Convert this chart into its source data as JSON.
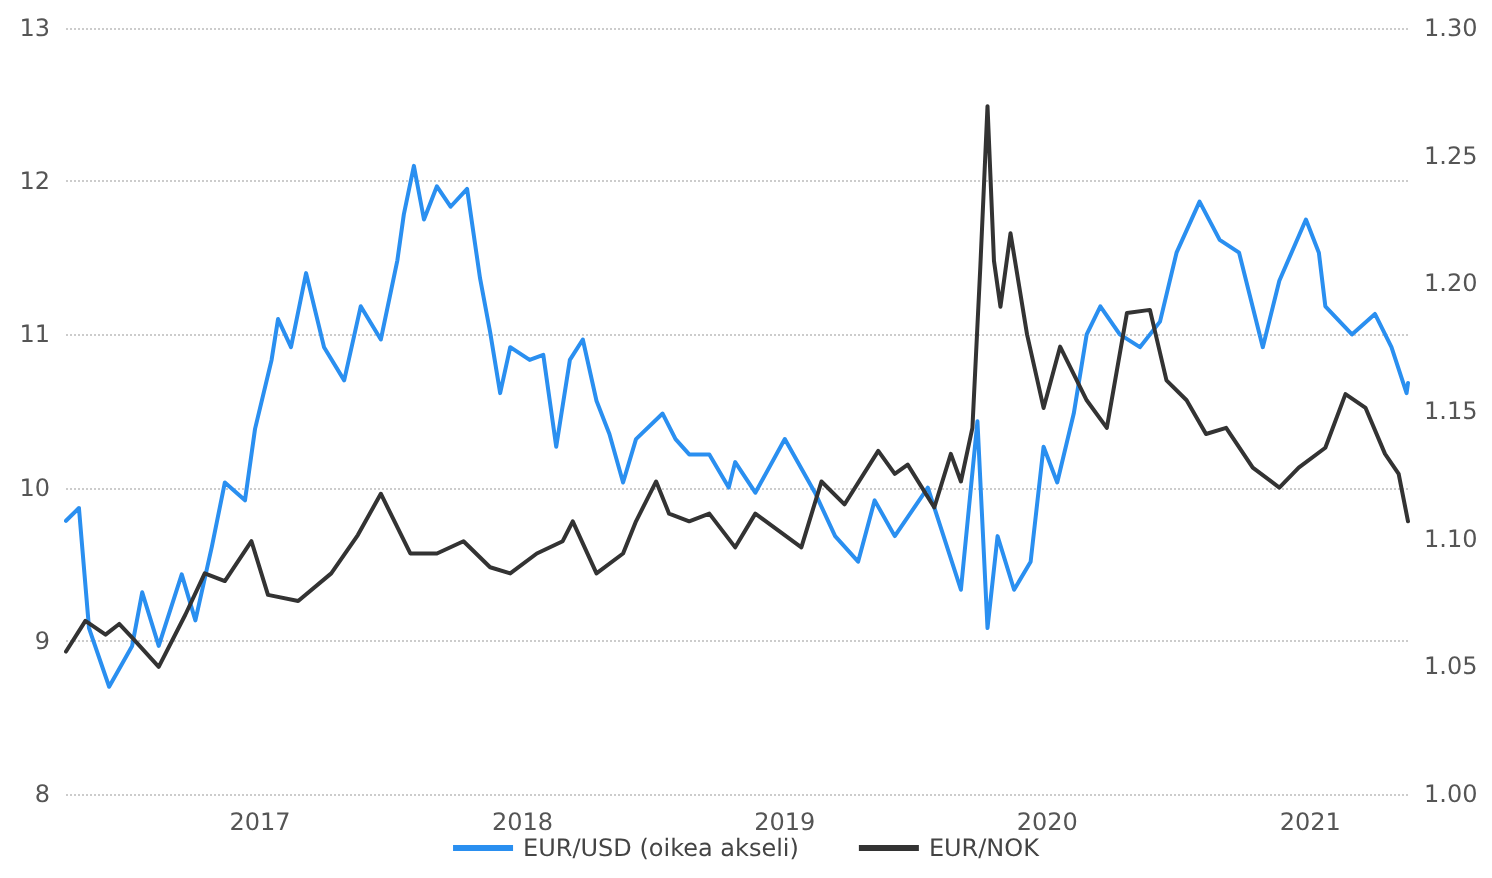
{
  "chart_data": {
    "type": "line",
    "xlim": [
      "2016-04-06",
      "2021-05-17"
    ],
    "xticks": [
      "2017",
      "2018",
      "2019",
      "2020",
      "2021"
    ],
    "ylim": [
      8,
      13
    ],
    "yticks": [
      8,
      9,
      10,
      11,
      12,
      13
    ],
    "y2lim": [
      1,
      1.3
    ],
    "y2ticks": [
      {
        "value": 1,
        "label": "1.00"
      },
      {
        "value": 1.05,
        "label": "1.05"
      },
      {
        "value": 1.1,
        "label": "1.10"
      },
      {
        "value": 1.15,
        "label": "1.15"
      },
      {
        "value": 1.2,
        "label": "1.20"
      },
      {
        "value": 1.25,
        "label": "1.25"
      },
      {
        "value": 1.3,
        "label": "1.30"
      }
    ],
    "grid": "y",
    "legend": "bottom",
    "marker": "none",
    "series": [
      {
        "name": "EUR/USD (oikea akseli)",
        "color": "#2a8ff0",
        "axis": "y2",
        "x": [
          "2016-04-06",
          "2016-04-24",
          "2016-05-08",
          "2016-06-05",
          "2016-07-07",
          "2016-07-21",
          "2016-08-13",
          "2016-09-14",
          "2016-10-03",
          "2016-10-26",
          "2016-11-13",
          "2016-12-11",
          "2016-12-25",
          "2017-01-17",
          "2017-01-26",
          "2017-02-13",
          "2017-03-06",
          "2017-03-31",
          "2017-04-28",
          "2017-05-21",
          "2017-06-18",
          "2017-07-11",
          "2017-07-20",
          "2017-08-03",
          "2017-08-17",
          "2017-09-04",
          "2017-09-23",
          "2017-10-16",
          "2017-11-03",
          "2017-11-17",
          "2017-12-01",
          "2017-12-15",
          "2018-01-11",
          "2018-01-30",
          "2018-02-17",
          "2018-03-08",
          "2018-03-26",
          "2018-04-14",
          "2018-05-02",
          "2018-05-21",
          "2018-06-08",
          "2018-07-15",
          "2018-08-02",
          "2018-08-21",
          "2018-09-18",
          "2018-10-15",
          "2018-10-24",
          "2018-11-21",
          "2019-01-01",
          "2019-02-12",
          "2019-03-12",
          "2019-04-13",
          "2019-05-06",
          "2019-06-03",
          "2019-07-19",
          "2019-09-03",
          "2019-09-26",
          "2019-10-10",
          "2019-10-24",
          "2019-11-16",
          "2019-12-09",
          "2019-12-27",
          "2020-01-15",
          "2020-02-07",
          "2020-02-25",
          "2020-03-15",
          "2020-04-11",
          "2020-05-09",
          "2020-06-06",
          "2020-06-29",
          "2020-07-31",
          "2020-08-28",
          "2020-09-24",
          "2020-10-27",
          "2020-11-19",
          "2020-12-26",
          "2021-01-13",
          "2021-01-22",
          "2021-02-28",
          "2021-04-01",
          "2021-04-24",
          "2021-05-15",
          "2021-05-17"
        ],
        "values": [
          1.107,
          1.112,
          1.065,
          1.042,
          1.058,
          1.079,
          1.058,
          1.086,
          1.068,
          1.097,
          1.122,
          1.115,
          1.143,
          1.17,
          1.186,
          1.175,
          1.204,
          1.175,
          1.162,
          1.191,
          1.178,
          1.209,
          1.227,
          1.246,
          1.225,
          1.238,
          1.23,
          1.237,
          1.202,
          1.181,
          1.157,
          1.175,
          1.17,
          1.172,
          1.136,
          1.17,
          1.178,
          1.154,
          1.141,
          1.122,
          1.139,
          1.149,
          1.139,
          1.133,
          1.133,
          1.12,
          1.13,
          1.118,
          1.139,
          1.118,
          1.101,
          1.091,
          1.115,
          1.101,
          1.12,
          1.08,
          1.146,
          1.065,
          1.101,
          1.08,
          1.091,
          1.136,
          1.122,
          1.149,
          1.18,
          1.191,
          1.18,
          1.175,
          1.185,
          1.212,
          1.232,
          1.217,
          1.212,
          1.175,
          1.201,
          1.225,
          1.212,
          1.191,
          1.18,
          1.188,
          1.175,
          1.157,
          1.161
        ]
      },
      {
        "name": "EUR/NOK",
        "color": "#333333",
        "x": [
          "2016-04-06",
          "2016-05-03",
          "2016-05-31",
          "2016-06-19",
          "2016-07-07",
          "2016-08-13",
          "2016-09-19",
          "2016-10-16",
          "2016-11-13",
          "2016-12-20",
          "2017-01-12",
          "2017-02-23",
          "2017-04-10",
          "2017-05-17",
          "2017-06-18",
          "2017-07-29",
          "2017-09-04",
          "2017-10-11",
          "2017-11-17",
          "2017-12-15",
          "2018-01-21",
          "2018-02-26",
          "2018-03-12",
          "2018-04-14",
          "2018-05-21",
          "2018-06-08",
          "2018-07-06",
          "2018-07-24",
          "2018-08-21",
          "2018-09-18",
          "2018-10-24",
          "2018-11-21",
          "2019-01-24",
          "2019-02-21",
          "2019-03-25",
          "2019-05-11",
          "2019-06-03",
          "2019-06-21",
          "2019-07-28",
          "2019-08-20",
          "2019-09-03",
          "2019-09-19",
          "2019-09-30",
          "2019-10-10",
          "2019-10-19",
          "2019-10-28",
          "2019-11-11",
          "2019-12-04",
          "2019-12-27",
          "2020-01-19",
          "2020-02-25",
          "2020-03-24",
          "2020-04-21",
          "2020-05-23",
          "2020-06-15",
          "2020-07-13",
          "2020-08-09",
          "2020-09-06",
          "2020-10-13",
          "2020-11-19",
          "2020-12-16",
          "2021-01-22",
          "2021-02-19",
          "2021-03-19",
          "2021-04-15",
          "2021-05-04",
          "2021-05-17"
        ],
        "values": [
          8.93,
          9.13,
          9.04,
          9.11,
          9.02,
          8.83,
          9.17,
          9.44,
          9.39,
          9.65,
          9.3,
          9.26,
          9.44,
          9.69,
          9.96,
          9.57,
          9.57,
          9.65,
          9.48,
          9.44,
          9.57,
          9.65,
          9.78,
          9.44,
          9.57,
          9.78,
          10.04,
          9.83,
          9.78,
          9.83,
          9.61,
          9.83,
          9.61,
          10.04,
          9.89,
          10.24,
          10.09,
          10.15,
          9.87,
          10.22,
          10.04,
          10.39,
          11.44,
          12.49,
          11.48,
          11.18,
          11.66,
          11.0,
          10.52,
          10.92,
          10.57,
          10.39,
          11.14,
          11.16,
          10.7,
          10.57,
          10.35,
          10.39,
          10.13,
          10.0,
          10.13,
          10.26,
          10.61,
          10.52,
          10.22,
          10.09,
          9.78
        ]
      }
    ]
  }
}
